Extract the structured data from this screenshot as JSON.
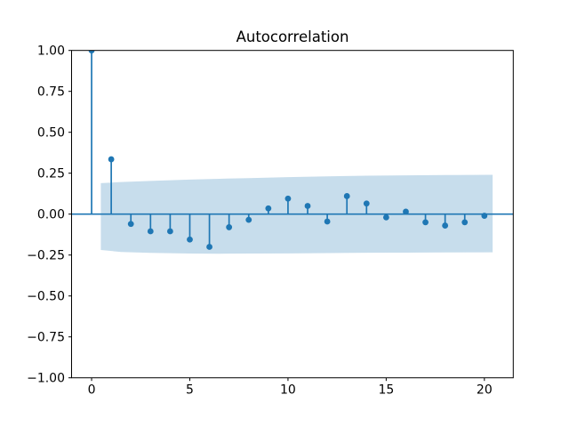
{
  "figure": {
    "background": "#ffffff"
  },
  "colors": {
    "series": "#1f77b4",
    "band": "#1f77b4",
    "band_opacity": 0.25,
    "axis": "#000000",
    "text": "#000000"
  },
  "chart_data": {
    "type": "stem",
    "title": "Autocorrelation",
    "xlabel": "",
    "ylabel": "",
    "x": [
      0,
      1,
      2,
      3,
      4,
      5,
      6,
      7,
      8,
      9,
      10,
      11,
      12,
      13,
      14,
      15,
      16,
      17,
      18,
      19,
      20
    ],
    "values": [
      1.0,
      0.335,
      -0.06,
      -0.105,
      -0.105,
      -0.155,
      -0.2,
      -0.08,
      -0.035,
      0.035,
      0.095,
      0.05,
      -0.045,
      0.11,
      0.065,
      -0.02,
      0.015,
      -0.05,
      -0.07,
      -0.05,
      -0.01
    ],
    "xlim": [
      -1.02,
      21.47
    ],
    "ylim": [
      -1.0,
      1.0
    ],
    "xtick_values": [
      0,
      5,
      10,
      15,
      20
    ],
    "xtick_labels": [
      "0",
      "5",
      "10",
      "15",
      "20"
    ],
    "ytick_values": [
      1.0,
      0.75,
      0.5,
      0.25,
      0.0,
      -0.25,
      -0.5,
      -0.75,
      -1.0
    ],
    "ytick_labels": [
      "1.00",
      "0.75",
      "0.50",
      "0.25",
      "0.00",
      "−0.25",
      "−0.50",
      "−0.75",
      "−1.00"
    ],
    "grid": false,
    "zero_line": 0.0,
    "confidence_band": {
      "x": [
        0.47,
        1.5,
        3.0,
        5.0,
        6.5,
        8.0,
        10.0,
        12.0,
        14.0,
        16.0,
        18.0,
        20.42
      ],
      "upper": [
        0.189,
        0.196,
        0.203,
        0.211,
        0.216,
        0.22,
        0.226,
        0.231,
        0.235,
        0.237,
        0.239,
        0.24
      ],
      "lower": [
        -0.219,
        -0.231,
        -0.237,
        -0.241,
        -0.242,
        -0.241,
        -0.24,
        -0.238,
        -0.236,
        -0.235,
        -0.234,
        -0.233
      ]
    }
  }
}
